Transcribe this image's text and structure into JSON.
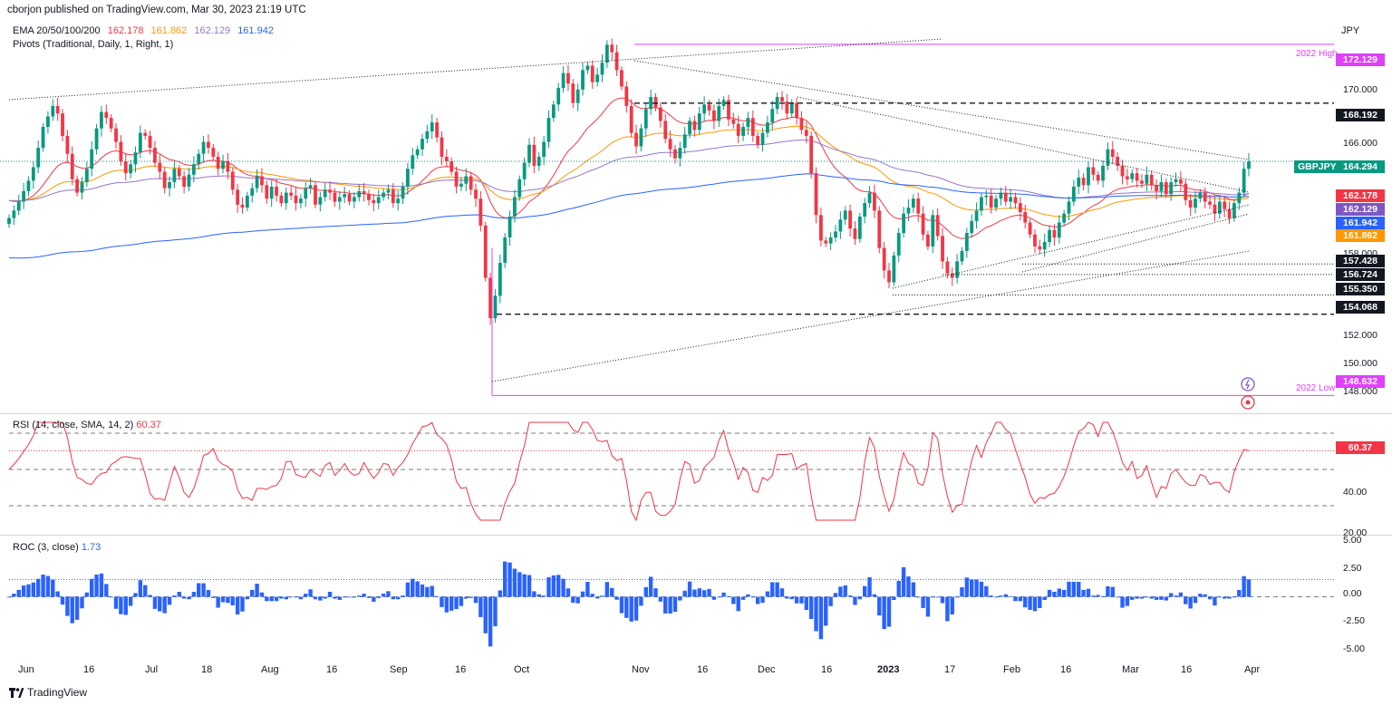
{
  "publisher": "cborjon published on TradingView.com, Mar 30, 2023 21:19 UTC",
  "currency": "JPY",
  "symbol": "GBPJPY",
  "legends": {
    "ema": {
      "label": "EMA 20/50/100/200",
      "values": [
        "162.178",
        "161.862",
        "162.129",
        "161.942"
      ],
      "colors": [
        "#f23645",
        "#ff9800",
        "#9575cd",
        "#2962ff"
      ]
    },
    "pivots": "Pivots (Traditional, Daily, 1, Right, 1)",
    "rsi": {
      "label": "RSI (14, close, SMA, 14, 2)",
      "value": "60.37"
    },
    "roc": {
      "label": "ROC (3, close)",
      "value": "1.73"
    }
  },
  "price_axis": {
    "ticks": [
      "170.000",
      "166.000",
      "158.000",
      "152.000",
      "150.000",
      "148.000"
    ]
  },
  "price_tags": [
    {
      "text": "172.129",
      "color": "#e040fb",
      "kind": "pivot"
    },
    {
      "text": "168.192",
      "color": "#131722",
      "kind": "level"
    },
    {
      "text": "164.294",
      "color": "#089981",
      "kind": "last"
    },
    {
      "text": "162.178",
      "color": "#f23645",
      "kind": "ema"
    },
    {
      "text": "162.129",
      "color": "#7e57c2",
      "kind": "ema"
    },
    {
      "text": "161.942",
      "color": "#2962ff",
      "kind": "ema"
    },
    {
      "text": "161.862",
      "color": "#ff9800",
      "kind": "ema"
    },
    {
      "text": "157.428",
      "color": "#131722",
      "kind": "level"
    },
    {
      "text": "156.724",
      "color": "#131722",
      "kind": "level"
    },
    {
      "text": "155.350",
      "color": "#131722",
      "kind": "level"
    },
    {
      "text": "154.068",
      "color": "#131722",
      "kind": "level"
    },
    {
      "text": "148.632",
      "color": "#e040fb",
      "kind": "pivot"
    }
  ],
  "annotations": {
    "high": "2022 High",
    "low": "2022 Low"
  },
  "rsi_axis": {
    "ticks": [
      "40.00",
      "20.00"
    ],
    "value_tag": "60.37"
  },
  "roc_axis": {
    "ticks": [
      "5.00",
      "2.50",
      "0.00",
      "-2.50",
      "-5.00"
    ]
  },
  "x_labels": [
    {
      "text": "Jun",
      "bold": false
    },
    {
      "text": "16",
      "bold": false
    },
    {
      "text": "Jul",
      "bold": false
    },
    {
      "text": "18",
      "bold": false
    },
    {
      "text": "Aug",
      "bold": false
    },
    {
      "text": "16",
      "bold": false
    },
    {
      "text": "Sep",
      "bold": false
    },
    {
      "text": "16",
      "bold": false
    },
    {
      "text": "Oct",
      "bold": false
    },
    {
      "text": "Nov",
      "bold": false
    },
    {
      "text": "16",
      "bold": false
    },
    {
      "text": "Dec",
      "bold": false
    },
    {
      "text": "16",
      "bold": false
    },
    {
      "text": "2023",
      "bold": true
    },
    {
      "text": "17",
      "bold": false
    },
    {
      "text": "Feb",
      "bold": false
    },
    {
      "text": "16",
      "bold": false
    },
    {
      "text": "Mar",
      "bold": false
    },
    {
      "text": "16",
      "bold": false
    },
    {
      "text": "Apr",
      "bold": false
    }
  ],
  "footer": "TradingView",
  "chart_data": {
    "type": "candlestick",
    "symbol": "GBPJPY",
    "x_range": [
      "Jun 2022",
      "Apr 2023"
    ],
    "ylim": [
      147.5,
      174
    ],
    "last_price": 164.294,
    "pivot_high": 172.129,
    "pivot_low": 148.632,
    "levels": [
      168.192,
      157.428,
      156.724,
      155.35,
      154.068
    ],
    "closes": [
      160.5,
      161.0,
      161.6,
      162.3,
      163.0,
      163.9,
      165.2,
      166.6,
      167.3,
      168.0,
      167.5,
      166.0,
      164.8,
      163.1,
      162.2,
      162.9,
      163.8,
      165.1,
      166.5,
      167.6,
      167.2,
      166.5,
      165.6,
      164.3,
      163.5,
      164.1,
      164.9,
      166.2,
      166.0,
      165.2,
      164.2,
      163.6,
      162.5,
      162.9,
      163.8,
      163.3,
      162.6,
      163.4,
      164.1,
      164.8,
      165.6,
      165.2,
      164.6,
      163.8,
      164.3,
      163.6,
      162.4,
      161.4,
      161.2,
      162.0,
      162.5,
      163.3,
      162.7,
      161.8,
      162.6,
      162.0,
      161.5,
      162.2,
      162.0,
      161.5,
      161.8,
      162.5,
      162.7,
      161.4,
      161.9,
      162.4,
      162.2,
      161.6,
      161.9,
      162.1,
      161.6,
      161.9,
      162.3,
      162.1,
      161.7,
      161.5,
      161.9,
      162.2,
      162.4,
      161.5,
      161.8,
      162.6,
      163.8,
      164.7,
      165.1,
      165.8,
      166.3,
      166.9,
      165.9,
      164.6,
      164.3,
      163.6,
      162.6,
      162.8,
      163.3,
      162.4,
      161.8,
      160.0,
      156.5,
      153.8,
      155.3,
      157.5,
      159.2,
      160.6,
      161.9,
      163.1,
      164.2,
      165.4,
      164.0,
      164.6,
      165.6,
      167.2,
      168.1,
      169.2,
      170.2,
      169.5,
      168.2,
      169.1,
      170.4,
      170.7,
      169.6,
      170.1,
      170.9,
      172.1,
      171.6,
      170.4,
      169.3,
      168.0,
      166.2,
      165.3,
      166.5,
      167.8,
      168.6,
      167.9,
      167.0,
      165.8,
      165.1,
      164.5,
      165.2,
      166.1,
      167.0,
      166.4,
      167.5,
      168.1,
      167.7,
      167.0,
      168.0,
      168.4,
      167.1,
      166.8,
      166.0,
      166.6,
      167.2,
      166.0,
      165.4,
      166.2,
      166.9,
      167.8,
      168.6,
      168.3,
      167.5,
      168.2,
      167.2,
      166.4,
      166.0,
      163.5,
      160.7,
      159.0,
      158.8,
      159.2,
      159.6,
      160.4,
      161.0,
      159.8,
      159.1,
      160.6,
      161.5,
      162.2,
      161.0,
      158.5,
      157.0,
      156.2,
      158.0,
      159.5,
      160.8,
      161.2,
      161.8,
      160.8,
      159.4,
      158.6,
      160.7,
      159.3,
      157.6,
      156.8,
      156.5,
      157.6,
      158.3,
      159.5,
      160.3,
      161.0,
      161.9,
      162.0,
      161.2,
      161.8,
      162.2,
      161.6,
      161.9,
      161.5,
      160.9,
      160.2,
      159.4,
      158.6,
      158.4,
      158.9,
      159.7,
      159.2,
      160.2,
      160.8,
      161.6,
      162.6,
      163.2,
      162.7,
      163.9,
      163.4,
      163.0,
      164.0,
      165.1,
      164.6,
      164.0,
      163.3,
      163.1,
      163.5,
      163.0,
      162.8,
      163.4,
      162.7,
      162.3,
      162.9,
      162.1,
      162.9,
      163.1,
      162.8,
      161.7,
      161.2,
      161.8,
      162.2,
      161.6,
      161.4,
      160.8,
      161.6,
      161.1,
      160.5,
      161.5,
      162.2,
      163.8,
      164.3
    ],
    "ema20_last": 162.178,
    "ema50_last": 161.862,
    "ema100_last": 162.129,
    "ema200_last": 161.942,
    "rsi_last": 60.37,
    "rsi_ylim": [
      15,
      80
    ],
    "roc_last": 1.73,
    "roc_ylim": [
      -6,
      6
    ]
  }
}
